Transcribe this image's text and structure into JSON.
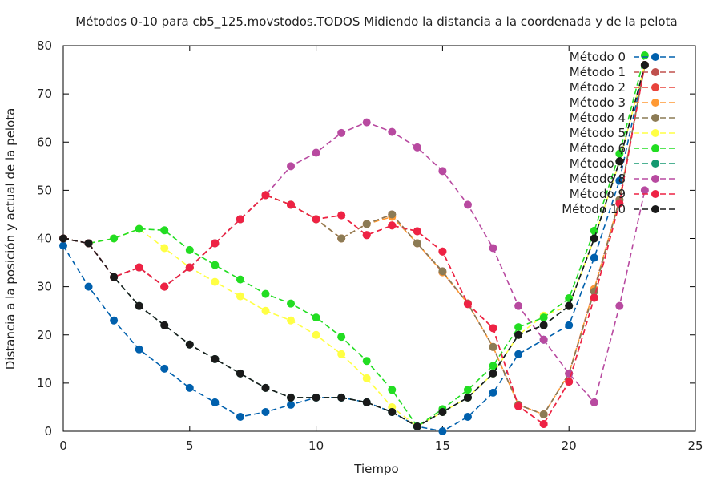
{
  "chart_data": {
    "type": "line",
    "title": "Métodos 0-10 para cb5_125.movstodos.TODOS Midiendo la distancia a la coordenada y de la pelota",
    "xlabel": "Tiempo",
    "ylabel": "Distancia a la posición y actual de la pelota",
    "xlim": [
      0,
      25
    ],
    "ylim": [
      0,
      80
    ],
    "x_ticks": [
      "0",
      "5",
      "10",
      "15",
      "20",
      "25"
    ],
    "y_ticks": [
      "0",
      "10",
      "20",
      "30",
      "40",
      "50",
      "60",
      "70",
      "80"
    ],
    "grid": false,
    "legend_position": "top-right",
    "series": [
      {
        "name": "Método 0",
        "color": "#0060ad",
        "x": [
          0,
          1,
          2,
          3,
          4,
          5,
          6,
          7,
          8,
          9,
          10,
          11,
          12,
          13,
          14,
          15,
          16,
          17,
          18,
          19,
          20,
          21,
          22,
          23
        ],
        "y": [
          38.5,
          30,
          23,
          17,
          13,
          9,
          6,
          3,
          4,
          5.5,
          7,
          7,
          6,
          4,
          1,
          0,
          3,
          8,
          16,
          19,
          22,
          36,
          52,
          76
        ]
      },
      {
        "name": "Método 1",
        "color": "#c0504d",
        "x": [
          0,
          1,
          2,
          3,
          4,
          5,
          6,
          7,
          8,
          9,
          10,
          11,
          12,
          13,
          14,
          15,
          16,
          17,
          18,
          19,
          20,
          21,
          22,
          23
        ],
        "y": [
          40,
          39,
          32,
          34,
          30,
          34,
          39,
          44,
          49,
          47,
          44,
          40,
          43,
          45,
          39,
          33,
          26.5,
          17.5,
          5.5,
          3.5,
          12,
          29.5,
          48,
          76
        ]
      },
      {
        "name": "Método 2",
        "color": "#e8433c",
        "x": [
          0,
          1,
          2,
          3,
          4,
          5,
          6,
          7,
          8,
          9,
          10,
          11,
          12,
          13,
          14,
          15,
          16,
          17,
          18,
          19,
          20,
          21,
          22,
          23
        ],
        "y": [
          40,
          39,
          32,
          34,
          30,
          34,
          39,
          44,
          49,
          47,
          44,
          44.8,
          40.7,
          42.7,
          41.5,
          37.3,
          26.4,
          21.4,
          5.2,
          1.5,
          10.3,
          27.7,
          47.3,
          76
        ]
      },
      {
        "name": "Método 3",
        "color": "#ff9933",
        "x": [
          0,
          1,
          2,
          3,
          4,
          5,
          6,
          7,
          8,
          9,
          10,
          11,
          12,
          13,
          14,
          15,
          16,
          17,
          18,
          19,
          20,
          21,
          22,
          23
        ],
        "y": [
          40,
          39,
          32,
          34,
          30,
          34,
          39,
          44,
          49,
          47,
          44,
          40,
          43,
          44.5,
          39,
          33,
          26.5,
          17.5,
          5.5,
          3.5,
          12,
          29.5,
          48,
          76
        ]
      },
      {
        "name": "Método 4",
        "color": "#8c7b55",
        "x": [
          0,
          1,
          2,
          3,
          4,
          5,
          6,
          7,
          8,
          9,
          10,
          11,
          12,
          13,
          14,
          15,
          16,
          17,
          18,
          19,
          20,
          21,
          22,
          23
        ],
        "y": [
          40,
          39,
          32,
          34,
          30,
          34,
          39,
          44,
          49,
          47,
          44,
          40,
          43,
          45,
          39,
          33.2,
          26.5,
          17.5,
          5.5,
          3.5,
          12,
          29,
          48,
          76
        ]
      },
      {
        "name": "Método 5",
        "color": "#ffff44",
        "x": [
          0,
          1,
          2,
          3,
          4,
          5,
          6,
          7,
          8,
          9,
          10,
          11,
          12,
          13,
          14,
          15,
          16,
          17,
          18,
          19,
          20,
          21,
          22,
          23
        ],
        "y": [
          40,
          39,
          40,
          42,
          38,
          34,
          31,
          28,
          25,
          23,
          20,
          16,
          11,
          5,
          1,
          4,
          7,
          12,
          20,
          24,
          26,
          40,
          56,
          76
        ]
      },
      {
        "name": "Método 6",
        "color": "#22dd22",
        "x": [
          0,
          1,
          2,
          3,
          4,
          5,
          6,
          7,
          8,
          9,
          10,
          11,
          12,
          13,
          14,
          15,
          16,
          17,
          18,
          19,
          20,
          21,
          22,
          23
        ],
        "y": [
          40,
          39,
          40,
          42,
          41.7,
          37.6,
          34.5,
          31.5,
          28.5,
          26.5,
          23.6,
          19.6,
          14.6,
          8.6,
          1,
          4.6,
          8.6,
          13.6,
          21.6,
          23.6,
          27.6,
          41.6,
          57.6,
          78
        ]
      },
      {
        "name": "Método 7",
        "color": "#149970",
        "x": [
          0,
          1,
          2,
          3,
          4,
          5,
          6,
          7,
          8,
          9,
          10,
          11,
          12,
          13,
          14,
          15,
          16,
          17,
          18,
          19,
          20,
          21,
          22,
          23
        ],
        "y": [
          40,
          39,
          32,
          26,
          22,
          18,
          15,
          12,
          9,
          7,
          7,
          7,
          6,
          4,
          1,
          4,
          7,
          12,
          20,
          22,
          26,
          40,
          56,
          76
        ]
      },
      {
        "name": "Método 8",
        "color": "#b84aa0",
        "x": [
          0,
          1,
          2,
          3,
          4,
          5,
          6,
          7,
          8,
          9,
          10,
          11,
          12,
          13,
          14,
          15,
          16,
          17,
          18,
          19,
          20,
          21,
          22,
          23
        ],
        "y": [
          40,
          39,
          32,
          34,
          30,
          34,
          39,
          44,
          49,
          55,
          57.8,
          61.9,
          64.1,
          62.1,
          58.9,
          54,
          47,
          38,
          26,
          19,
          12,
          6,
          26,
          50
        ]
      },
      {
        "name": "Método 9",
        "color": "#ee2244",
        "x": [
          0,
          1,
          2,
          3,
          4,
          5,
          6,
          7,
          8,
          9,
          10,
          11,
          12,
          13,
          14,
          15,
          16,
          17,
          18,
          19,
          20,
          21,
          22,
          23
        ],
        "y": [
          40,
          39,
          32,
          34,
          30,
          34,
          39,
          44,
          49,
          47,
          44,
          44.8,
          40.7,
          42.7,
          41.5,
          37.3,
          26.4,
          21.4,
          5.2,
          1.5,
          10.3,
          27.7,
          47.3,
          76
        ]
      },
      {
        "name": "Método 10",
        "color": "#1a1a1a",
        "x": [
          0,
          1,
          2,
          3,
          4,
          5,
          6,
          7,
          8,
          9,
          10,
          11,
          12,
          13,
          14,
          15,
          16,
          17,
          18,
          19,
          20,
          21,
          22,
          23
        ],
        "y": [
          40,
          39,
          32,
          26,
          22,
          18,
          15,
          12,
          9,
          7,
          7,
          7,
          6,
          4,
          1,
          4,
          7,
          12,
          20,
          22,
          26,
          40,
          56,
          76
        ]
      }
    ]
  }
}
